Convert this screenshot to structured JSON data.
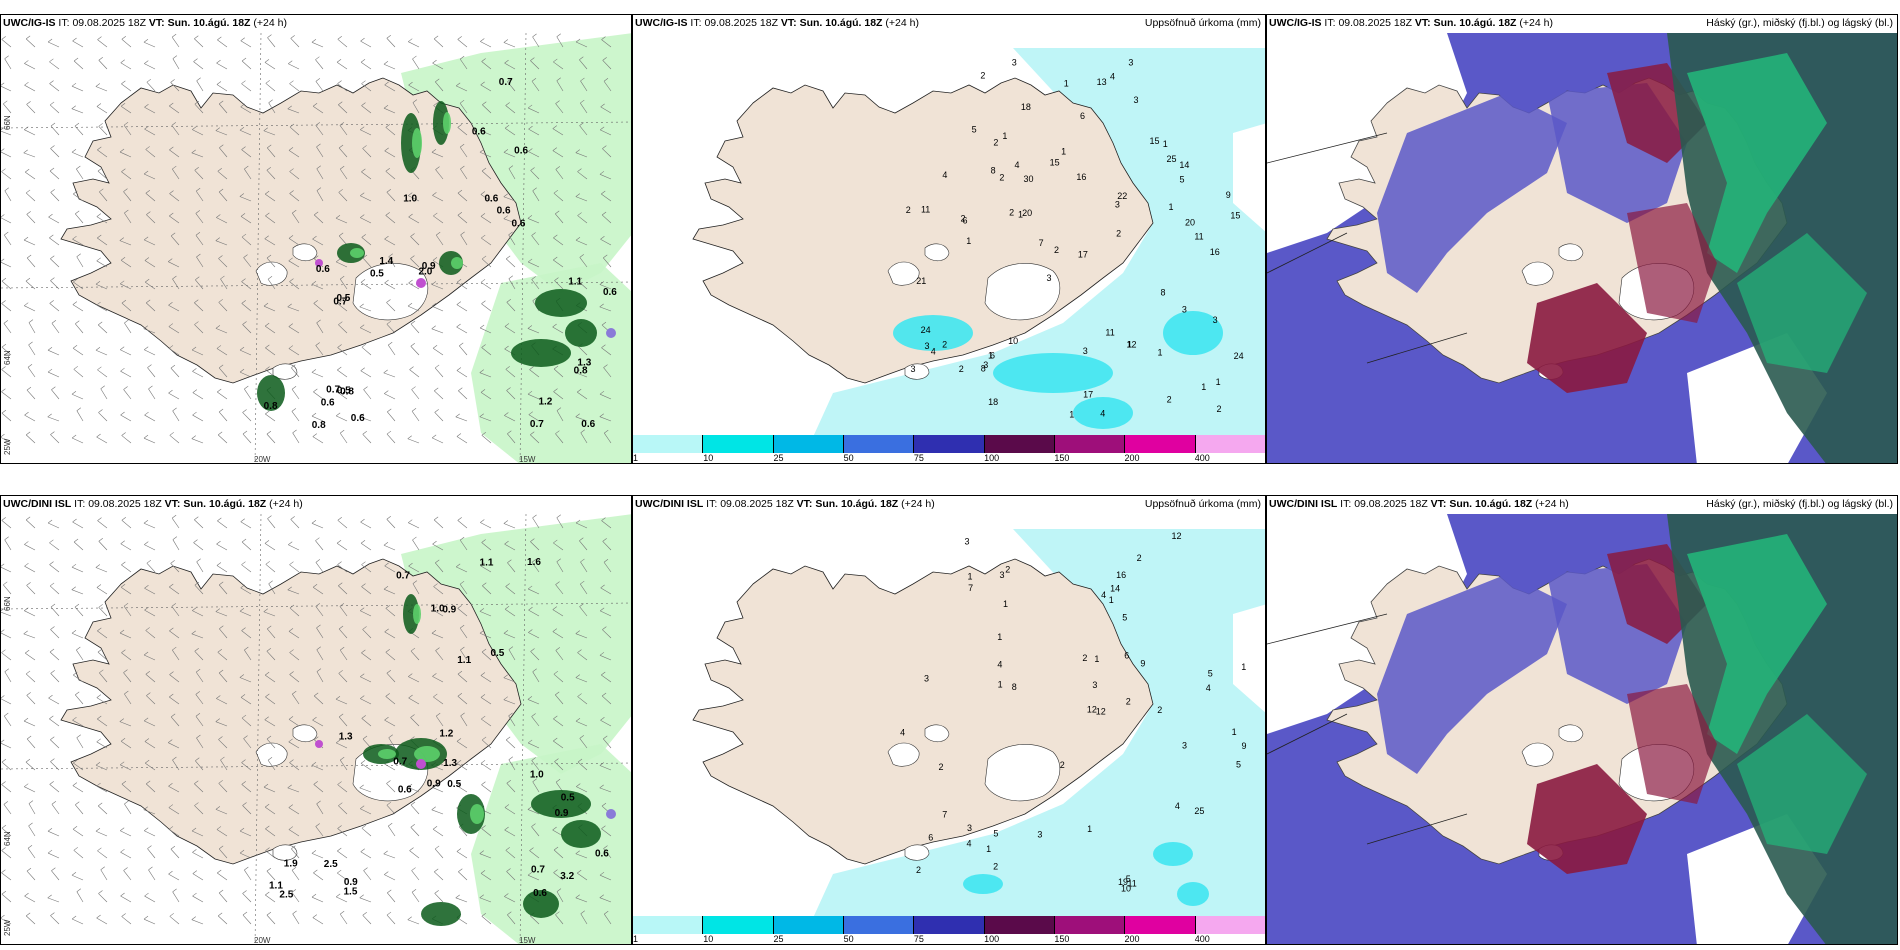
{
  "rows": [
    {
      "model": "UWC/IG-IS",
      "it_label": "IT:",
      "it_value": "09.08.2025 18Z",
      "vt_label": "VT:",
      "vt_value": "Sun. 10.ágú. 18Z",
      "lead": "(+24 h)"
    },
    {
      "model": "UWC/DINI ISL",
      "it_label": "IT:",
      "it_value": "09.08.2025 18Z",
      "vt_label": "VT:",
      "vt_value": "Sun. 10.ágú. 18Z",
      "lead": "(+24 h)"
    }
  ],
  "titles": {
    "precip": "Uppsöfnuð úrkoma (mm)",
    "clouds": "Háský (gr.), miðský (fj.bl.) og lágský (bl.)"
  },
  "axes": {
    "lat_top": "66N",
    "lat_mid": "64N",
    "lat_bot": "25W",
    "lon_left": "20W",
    "lon_right": "15W"
  },
  "colorbar": {
    "ticks": [
      "1",
      "10",
      "25",
      "50",
      "75",
      "100",
      "150",
      "200",
      "400"
    ],
    "colors": [
      "#b8f7f7",
      "#00e5e5",
      "#00b8e6",
      "#3a6fe0",
      "#2f2fb0",
      "#5a0a4a",
      "#9e0f7a",
      "#e000a0",
      "#f5a8ef"
    ]
  },
  "colors": {
    "land": "#f0e3d6",
    "ice": "#ffffff",
    "precip_light": "#bff5f7",
    "precip_mid": "#40e6ef",
    "rain_light": "#c8f5c8",
    "rain_mid": "#5ccf6a",
    "rain_dark": "#0a5a1a",
    "cloud_low": "#5a58c8",
    "cloud_mid": "#8a1a40",
    "cloud_high": "#22b87a",
    "cloud_dark": "#2a5a50"
  },
  "panels": {
    "r1_left": {
      "labels": [
        "0.6",
        "0.6",
        "1.2",
        "0.7",
        "0.6",
        "0.7",
        "0.8",
        "0.6",
        "0.6",
        "0.5",
        "0.6",
        "0.8",
        "0.6",
        "0.9",
        "1.3",
        "0.8",
        "0.7",
        "0.5",
        "0.7",
        "0.8",
        "0.6",
        "2.0",
        "0.6",
        "0.5",
        "1.0",
        "1.4",
        "1.1",
        "0.6"
      ]
    },
    "r1_mid": {
      "labels": [
        "2",
        "3",
        "3",
        "3",
        "3",
        "4",
        "2",
        "1",
        "1",
        "1",
        "1",
        "4",
        "3",
        "2",
        "5",
        "3",
        "1",
        "2",
        "1",
        "3",
        "2",
        "1",
        "3",
        "1",
        "4",
        "2",
        "1",
        "1",
        "3",
        "2",
        "2",
        "2",
        "1",
        "2",
        "1",
        "3",
        "5",
        "6",
        "8",
        "2",
        "1",
        "2",
        "3",
        "4",
        "15",
        "21",
        "16",
        "8",
        "6",
        "30",
        "15",
        "18",
        "25",
        "16",
        "22",
        "24",
        "18",
        "17",
        "20",
        "17",
        "14",
        "20",
        "11",
        "11",
        "15",
        "11",
        "24",
        "10",
        "13",
        "8",
        "12",
        "6",
        "4",
        "7",
        "9"
      ]
    },
    "r2_left": {
      "labels": [
        "0.5",
        "1.3",
        "0.6",
        "1.9",
        "0.9",
        "0.9",
        "0.7",
        "2.5",
        "1.0",
        "0.6",
        "1.0",
        "1.1",
        "0.7",
        "0.5",
        "3.2",
        "0.9",
        "1.1",
        "0.7",
        "0.5",
        "2.5",
        "1.6",
        "1.2",
        "0.9",
        "1.5",
        "1.1",
        "1.3",
        "0.6"
      ]
    },
    "r2_mid": {
      "labels": [
        "1",
        "4",
        "4",
        "3",
        "3",
        "2",
        "1",
        "2",
        "1",
        "2",
        "1",
        "1",
        "1",
        "3",
        "2",
        "2",
        "1",
        "1",
        "2",
        "4",
        "2",
        "1",
        "3",
        "1",
        "2",
        "2",
        "5",
        "5",
        "4",
        "6",
        "5",
        "6",
        "3",
        "4",
        "11",
        "5",
        "14",
        "12",
        "25",
        "19",
        "16",
        "8",
        "9",
        "10",
        "12",
        "12",
        "9",
        "7",
        "7",
        "3",
        "4",
        "3",
        "5"
      ]
    }
  }
}
